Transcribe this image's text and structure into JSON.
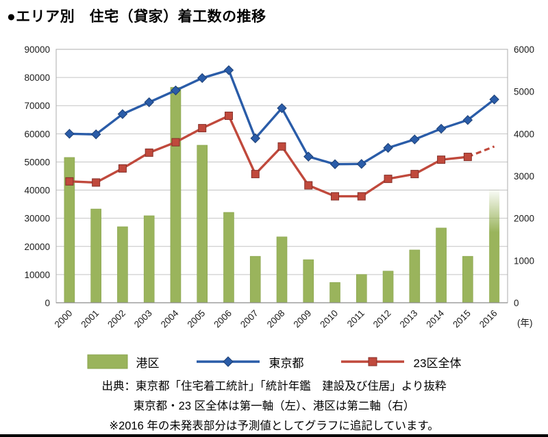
{
  "page": {
    "title": "●エリア別　住宅（貸家）着工数の推移"
  },
  "chart_data": {
    "type": "combo-bar-line",
    "title": "エリア別 住宅（貸家）着工数の推移",
    "categories": [
      "2000",
      "2001",
      "2002",
      "2003",
      "2004",
      "2005",
      "2006",
      "2007",
      "2008",
      "2009",
      "2010",
      "2011",
      "2012",
      "2013",
      "2014",
      "2015",
      "2016"
    ],
    "x_axis_unit": "(年)",
    "left_axis": {
      "min": 0,
      "max": 90000,
      "step": 10000
    },
    "right_axis": {
      "min": 0,
      "max": 6000,
      "step": 1000
    },
    "grid": "horizontal",
    "legend_position": "bottom",
    "series": [
      {
        "name": "港区",
        "type": "bar",
        "axis": "right",
        "color": "#9ab45c",
        "edge_color": "#88a34c",
        "forecast_last": true,
        "values": [
          3440,
          2220,
          1800,
          2060,
          5100,
          3730,
          2140,
          1100,
          1560,
          1020,
          480,
          670,
          750,
          1250,
          1770,
          1100,
          2690
        ]
      },
      {
        "name": "東京都",
        "type": "line",
        "axis": "left",
        "color": "#2a5ca8",
        "marker": "diamond",
        "marker_stroke": "#1c3f74",
        "forecast_last": false,
        "values": [
          60000,
          59800,
          67000,
          71200,
          75400,
          79800,
          82600,
          58400,
          69100,
          51900,
          49200,
          49300,
          55000,
          58000,
          61800,
          64900,
          72200
        ]
      },
      {
        "name": "23区全体",
        "type": "line",
        "axis": "left",
        "color": "#c0493c",
        "marker": "square",
        "marker_stroke": "#84302a",
        "forecast_last": true,
        "values": [
          43100,
          42700,
          47700,
          53300,
          57000,
          62000,
          66400,
          45700,
          55500,
          41700,
          37800,
          37800,
          44000,
          45700,
          50800,
          51800,
          55500
        ]
      }
    ]
  },
  "footer": {
    "lines": [
      "出典：東京都「住宅着工統計」「統計年鑑　建設及び住居」より抜粋",
      "東京都・23 区全体は第一軸（左）、港区は第二軸（右）",
      "※2016 年の未発表部分は予測値としてグラフに追記しています。"
    ]
  }
}
